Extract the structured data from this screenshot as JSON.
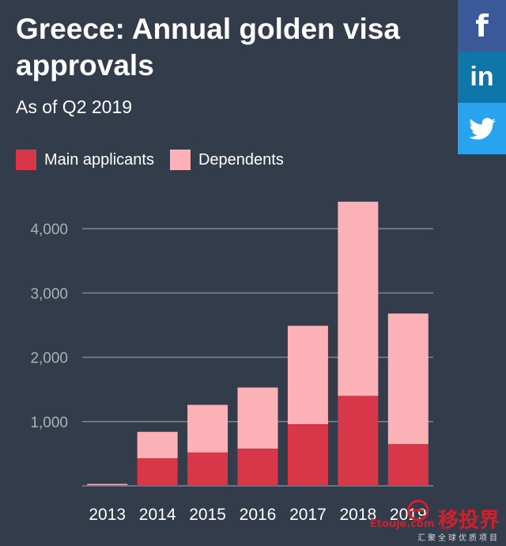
{
  "header": {
    "title": "Greece: Annual golden visa approvals",
    "subtitle": "As of Q2 2019"
  },
  "share": {
    "facebook_label": "f",
    "linkedin_label": "in"
  },
  "colors": {
    "background": "#333c4a",
    "main_applicants": "#d8374a",
    "dependents": "#fbb1b5",
    "grid": "#7d858f",
    "tick_label": "#a9b0b8"
  },
  "chart_data": {
    "type": "bar",
    "stacked": true,
    "categories": [
      "2013",
      "2014",
      "2015",
      "2016",
      "2017",
      "2018",
      "2019"
    ],
    "series": [
      {
        "name": "Main applicants",
        "values": [
          10,
          430,
          520,
          580,
          960,
          1400,
          650
        ]
      },
      {
        "name": "Dependents",
        "values": [
          20,
          410,
          740,
          950,
          1530,
          3020,
          2030
        ]
      }
    ],
    "ylim": [
      0,
      4500
    ],
    "yticks": [
      1000,
      2000,
      3000,
      4000
    ],
    "ytick_labels": [
      "1,000",
      "2,000",
      "3,000",
      "4,000"
    ],
    "grid": true,
    "legend": "top-left",
    "title": "Greece: Annual golden visa approvals",
    "subtitle": "As of Q2 2019"
  },
  "watermark": {
    "brand": "Etouje.com",
    "chinese": "移投界",
    "tagline": "汇聚全球优质项目"
  }
}
